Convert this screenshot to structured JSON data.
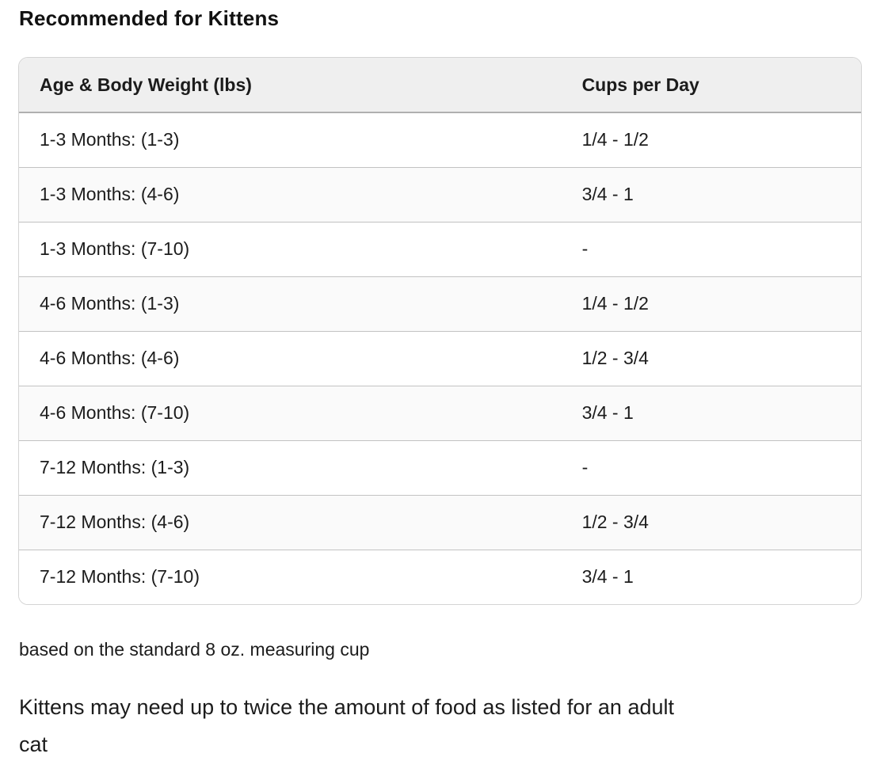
{
  "page": {
    "title": "Recommended for Kittens"
  },
  "table": {
    "columns": [
      "Age & Body Weight (lbs)",
      "Cups per Day"
    ],
    "rows": [
      {
        "age": "1-3 Months: (1-3)",
        "cups": "1/4 - 1/2"
      },
      {
        "age": "1-3 Months: (4-6)",
        "cups": "3/4 - 1"
      },
      {
        "age": "1-3 Months: (7-10)",
        "cups": "-"
      },
      {
        "age": "4-6 Months: (1-3)",
        "cups": "1/4 - 1/2"
      },
      {
        "age": "4-6 Months: (4-6)",
        "cups": "1/2 - 3/4"
      },
      {
        "age": "4-6 Months: (7-10)",
        "cups": "3/4 - 1"
      },
      {
        "age": "7-12 Months: (1-3)",
        "cups": "-"
      },
      {
        "age": "7-12 Months: (4-6)",
        "cups": "1/2 - 3/4"
      },
      {
        "age": "7-12 Months: (7-10)",
        "cups": "3/4 - 1"
      }
    ]
  },
  "footnote": "based on the standard 8 oz. measuring cup",
  "note": {
    "lines": [
      "Kittens may need up to twice the amount of food as listed for an adult",
      "cat"
    ]
  },
  "colors": {
    "header_bg": "#efefef",
    "row_stripe": "#fafafa",
    "row_divider": "#c2c2c2",
    "outer_border": "#d4d4d4",
    "text": "#1c1c1c"
  }
}
